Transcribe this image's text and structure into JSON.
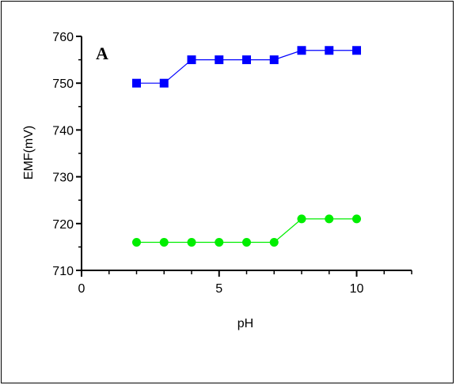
{
  "chart_data": {
    "type": "line",
    "panel_label": "A",
    "title": "",
    "xlabel": "pH",
    "ylabel": "EMF(mV)",
    "xlim": [
      0,
      12
    ],
    "ylim": [
      710,
      760
    ],
    "x_ticks": [
      0,
      5,
      10
    ],
    "y_ticks": [
      710,
      720,
      730,
      740,
      750,
      760
    ],
    "grid": false,
    "legend": "none",
    "series": [
      {
        "color": "#0000ff",
        "marker": "square",
        "x": [
          2,
          3,
          4,
          5,
          6,
          7,
          8,
          9,
          10
        ],
        "y": [
          750,
          750,
          755,
          755,
          755,
          755,
          757,
          757,
          757
        ]
      },
      {
        "color": "#00ee00",
        "marker": "circle",
        "x": [
          2,
          3,
          4,
          5,
          6,
          7,
          8,
          9,
          10
        ],
        "y": [
          716,
          716,
          716,
          716,
          716,
          716,
          721,
          721,
          721
        ]
      }
    ]
  }
}
